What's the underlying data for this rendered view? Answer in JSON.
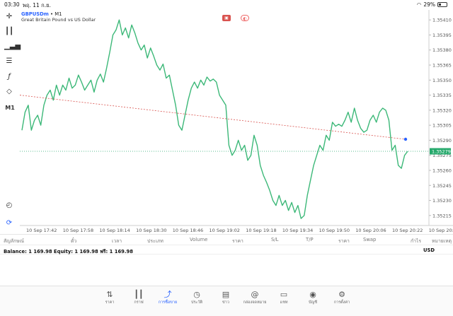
{
  "status": {
    "time": "03:30",
    "date": "พฤ. 11 ก.ย.",
    "battery": "29%",
    "battery_level": 0.29,
    "icons": [
      "wifi-icon",
      "battery-icon"
    ]
  },
  "toolbar": {
    "timeframe": "M1",
    "icons": [
      "crosshair-icon",
      "candles-icon",
      "indicators-icon",
      "objects-icon",
      "function-icon",
      "shapes-icon",
      "history-icon",
      "magnet-icon"
    ]
  },
  "chart": {
    "symbol": "GBPUSDm",
    "separator": " • ",
    "timeframe": "M1",
    "description": "Great Britain Pound vs US Dollar",
    "current_price": "1.35279",
    "y_ticks": [
      "1.35410",
      "1.35395",
      "1.35380",
      "1.35365",
      "1.35350",
      "1.35335",
      "1.35320",
      "1.35305",
      "1.35290",
      "1.35275",
      "1.35260",
      "1.35245",
      "1.35230",
      "1.35215"
    ],
    "x_ticks": [
      "10 Sep 17:42",
      "10 Sep 17:58",
      "10 Sep 18:14",
      "10 Sep 18:30",
      "10 Sep 18:46",
      "10 Sep 19:02",
      "10 Sep 19:18",
      "10 Sep 19:34",
      "10 Sep 19:50",
      "10 Sep 20:06",
      "10 Sep 20:22",
      "10 Sep 20:3"
    ],
    "colors": {
      "line": "#3cb878",
      "trend": "#d9534f",
      "price_label": "#26a96c",
      "dot": "#2962ff"
    }
  },
  "chart_data": {
    "type": "line",
    "series": [
      {
        "values": [
          1.353,
          1.35318,
          1.35325,
          1.353,
          1.3531,
          1.35315,
          1.35305,
          1.35325,
          1.35335,
          1.3534,
          1.3533,
          1.35345,
          1.35335,
          1.35345,
          1.3534,
          1.35352,
          1.35342,
          1.35345,
          1.35355,
          1.35348,
          1.3534,
          1.35345,
          1.3535,
          1.35338,
          1.3535,
          1.35356,
          1.35348,
          1.35362,
          1.35378,
          1.35395,
          1.354,
          1.3541,
          1.35395,
          1.35402,
          1.35392,
          1.35405,
          1.35397,
          1.35387,
          1.3538,
          1.35385,
          1.35372,
          1.35382,
          1.35374,
          1.35365,
          1.3536,
          1.35366,
          1.35352,
          1.35355,
          1.3534,
          1.35325,
          1.35305,
          1.353,
          1.35315,
          1.3533,
          1.35342,
          1.35348,
          1.35342,
          1.3535,
          1.35345,
          1.35353,
          1.35349,
          1.35351,
          1.35348,
          1.35335,
          1.3533,
          1.35325,
          1.35285,
          1.35275,
          1.3528,
          1.3529,
          1.3528,
          1.35285,
          1.3527,
          1.35275,
          1.35295,
          1.35285,
          1.35265,
          1.35255,
          1.35248,
          1.3524,
          1.3523,
          1.35225,
          1.35235,
          1.35225,
          1.3523,
          1.3522,
          1.35228,
          1.35218,
          1.35225,
          1.35212,
          1.35215,
          1.35235,
          1.3525,
          1.35265,
          1.35275,
          1.35285,
          1.3528,
          1.35295,
          1.3529,
          1.35308,
          1.35304,
          1.35306,
          1.35304,
          1.3531,
          1.35318,
          1.35308,
          1.35322,
          1.3531,
          1.35302,
          1.35298,
          1.353,
          1.3531,
          1.35315,
          1.35308,
          1.35318,
          1.35322,
          1.3532,
          1.3531,
          1.3528,
          1.35285,
          1.35265,
          1.35262,
          1.35275,
          1.35279
        ]
      }
    ],
    "trend_line": {
      "x": [
        "10 Sep 17:36",
        "10 Sep 20:13"
      ],
      "y": [
        1.35335,
        1.35291
      ]
    },
    "bid_line": 1.35279,
    "ylim": [
      1.35205,
      1.3542
    ],
    "grid": false
  },
  "table": {
    "columns": [
      "สัญลักษณ์",
      "ตั๋ว",
      "เวลา",
      "ประเภท",
      "Volume",
      "ราคา",
      "S/L",
      "T/P",
      "ราคา",
      "Swap",
      "กำไร",
      "หมายเหตุ"
    ]
  },
  "account": {
    "balance_text": "Balance: 1 169.98 Equity: 1 169.98 ฟรี: 1 169.98",
    "currency": "USD"
  },
  "nav": [
    {
      "label": "ราคา",
      "icon": "quotes-icon"
    },
    {
      "label": "กราฟ",
      "icon": "chart-icon"
    },
    {
      "label": "การซื้อขาย",
      "icon": "trade-icon"
    },
    {
      "label": "ประวัติ",
      "icon": "history-icon"
    },
    {
      "label": "ข่าว",
      "icon": "news-icon"
    },
    {
      "label": "กล่องจดหมาย",
      "icon": "mailbox-icon"
    },
    {
      "label": "แชท",
      "icon": "chat-icon"
    },
    {
      "label": "บัญชี",
      "icon": "account-icon"
    },
    {
      "label": "การตั้งค่า",
      "icon": "settings-icon"
    }
  ]
}
